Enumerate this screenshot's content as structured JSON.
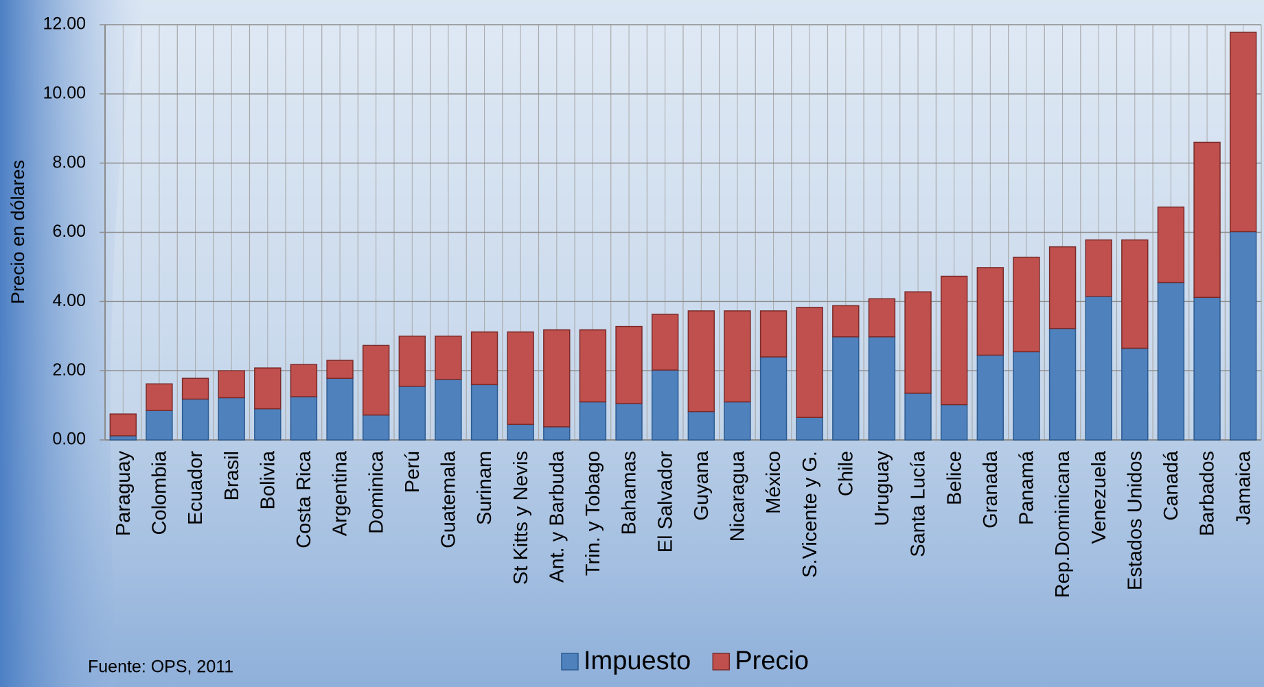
{
  "chart_data": {
    "type": "stacked-bar",
    "ylabel": "Precio en dólares",
    "source": "Fuente: OPS, 2011",
    "categories": [
      "Paraguay",
      "Colombia",
      "Ecuador",
      "Brasil",
      "Bolivia",
      "Costa Rica",
      "Argentina",
      "Dominica",
      "Perú",
      "Guatemala",
      "Surinam",
      "St Kitts y Nevis",
      "Ant. y Barbuda",
      "Trin. y Tobago",
      "Bahamas",
      "El Salvador",
      "Guyana",
      "Nicaragua",
      "México",
      "S.Vicente y G.",
      "Chile",
      "Uruguay",
      "Santa Lucía",
      "Belice",
      "Granada",
      "Panamá",
      "Rep.Dominicana",
      "Venezuela",
      "Estados Unidos",
      "Canadá",
      "Barbados",
      "Jamaica"
    ],
    "series": [
      {
        "name": "Impuesto",
        "color": "#4f81bd",
        "values": [
          0.12,
          0.85,
          1.18,
          1.22,
          0.9,
          1.25,
          1.78,
          0.72,
          1.55,
          1.75,
          1.6,
          0.45,
          0.38,
          1.1,
          1.05,
          2.02,
          0.82,
          1.1,
          2.4,
          0.65,
          2.98,
          2.98,
          1.35,
          1.02,
          2.45,
          2.55,
          3.22,
          4.15,
          2.65,
          4.55,
          4.12,
          6.02
        ]
      },
      {
        "name": "Precio",
        "color": "#c0504d",
        "values": [
          0.63,
          0.77,
          0.6,
          0.78,
          1.18,
          0.93,
          0.52,
          2.01,
          1.45,
          1.25,
          1.52,
          2.67,
          2.8,
          2.08,
          2.23,
          1.61,
          2.91,
          2.63,
          1.33,
          3.18,
          0.9,
          1.1,
          2.93,
          3.71,
          2.53,
          2.73,
          2.36,
          1.63,
          3.13,
          2.18,
          4.48,
          5.76
        ]
      }
    ],
    "ylim": [
      0,
      12
    ],
    "yticks": [
      {
        "value": 0,
        "label": "0.00"
      },
      {
        "value": 2,
        "label": "2.00"
      },
      {
        "value": 4,
        "label": "4.00"
      },
      {
        "value": 6,
        "label": "6.00"
      },
      {
        "value": 8,
        "label": "8.00"
      },
      {
        "value": 10,
        "label": "10.00"
      },
      {
        "value": 12,
        "label": "12.00"
      }
    ],
    "grid": true
  }
}
